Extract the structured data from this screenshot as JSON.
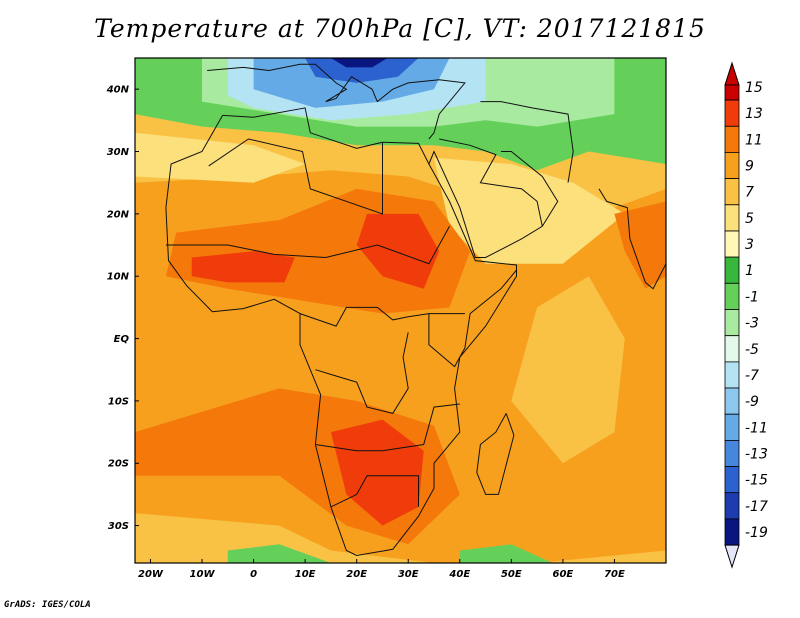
{
  "title": "Temperature at 700hPa [C], VT: 2017121815",
  "credit": "GrADS: IGES/COLA",
  "map": {
    "lon_range": [
      -23,
      80
    ],
    "lat_range": [
      -36,
      45
    ],
    "lat_ticks": [
      {
        "value": 40,
        "label": "40N"
      },
      {
        "value": 30,
        "label": "30N"
      },
      {
        "value": 20,
        "label": "20N"
      },
      {
        "value": 10,
        "label": "10N"
      },
      {
        "value": 0,
        "label": "EQ"
      },
      {
        "value": -10,
        "label": "10S"
      },
      {
        "value": -20,
        "label": "20S"
      },
      {
        "value": -30,
        "label": "30S"
      }
    ],
    "lon_ticks": [
      {
        "value": -20,
        "label": "20W"
      },
      {
        "value": -10,
        "label": "10W"
      },
      {
        "value": 0,
        "label": "0"
      },
      {
        "value": 10,
        "label": "10E"
      },
      {
        "value": 20,
        "label": "20E"
      },
      {
        "value": 30,
        "label": "30E"
      },
      {
        "value": 40,
        "label": "40E"
      },
      {
        "value": 50,
        "label": "50E"
      },
      {
        "value": 60,
        "label": "60E"
      },
      {
        "value": 70,
        "label": "70E"
      }
    ]
  },
  "colorbar": {
    "levels": [
      {
        "label": "15",
        "color": "#c80000"
      },
      {
        "label": "13",
        "color": "#f03c0a"
      },
      {
        "label": "11",
        "color": "#f5780a"
      },
      {
        "label": "9",
        "color": "#f7a01e"
      },
      {
        "label": "7",
        "color": "#f9c245"
      },
      {
        "label": "5",
        "color": "#fbe07c"
      },
      {
        "label": "3",
        "color": "#fef7b5"
      },
      {
        "label": "1",
        "color": "#37b83c"
      },
      {
        "label": "-1",
        "color": "#64d05a"
      },
      {
        "label": "-3",
        "color": "#a8eaa0"
      },
      {
        "label": "-5",
        "color": "#e2f8ea"
      },
      {
        "label": "-7",
        "color": "#b4e4f4"
      },
      {
        "label": "-9",
        "color": "#8cc8ee"
      },
      {
        "label": "-11",
        "color": "#64aae6"
      },
      {
        "label": "-13",
        "color": "#4686dc"
      },
      {
        "label": "-15",
        "color": "#2c62d0"
      },
      {
        "label": "-17",
        "color": "#1c3cb0"
      },
      {
        "label": "-19",
        "color": "#0a1680"
      }
    ],
    "bottom_color": "#e6e6fa"
  },
  "colors": {
    "warm_background": "#f7a01e",
    "hot": "#f5780a",
    "hottest": "#f03c0a",
    "mild": "#f9c245",
    "pale": "#fbe07c",
    "green": "#64d05a",
    "light_green": "#a8eaa0",
    "dark_green": "#37b83c",
    "cool": "#b4e4f4",
    "cold": "#64aae6",
    "colder": "#2c62d0",
    "coldest": "#0a1680"
  }
}
